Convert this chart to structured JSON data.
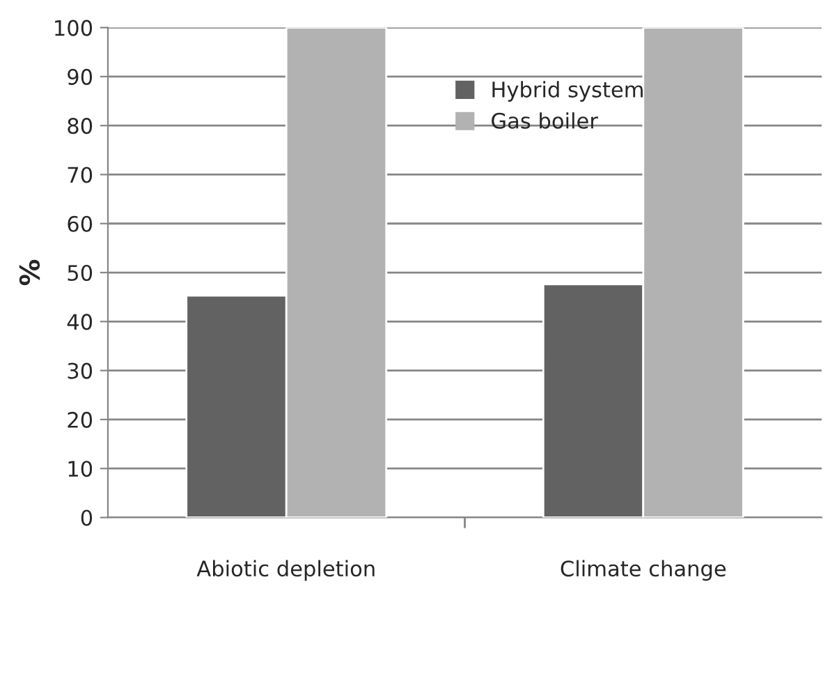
{
  "chart_data": {
    "type": "bar",
    "ylabel": "%",
    "categories": [
      "Abiotic depletion",
      "Climate change"
    ],
    "series": [
      {
        "name": "Hybrid system",
        "color": "#626262",
        "values": [
          45.3,
          47.6
        ]
      },
      {
        "name": "Gas boiler",
        "color": "#b2b2b2",
        "values": [
          100,
          100
        ]
      }
    ],
    "ylim": [
      0,
      100
    ],
    "yticks": [
      0,
      10,
      20,
      30,
      40,
      50,
      60,
      70,
      80,
      90,
      100
    ],
    "grid": "y",
    "legend": "top right"
  }
}
